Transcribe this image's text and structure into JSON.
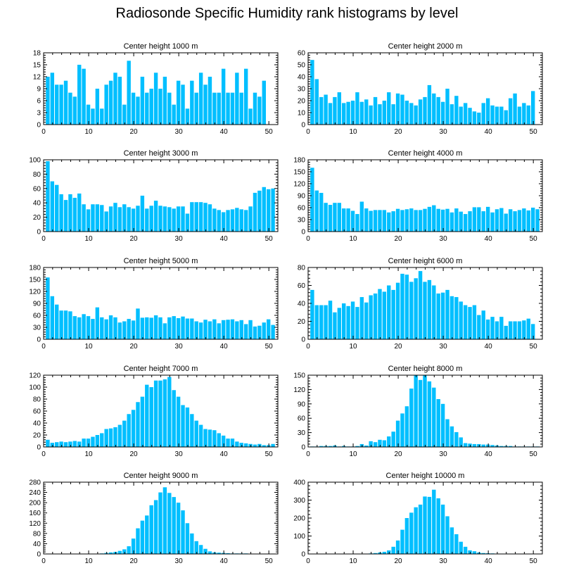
{
  "title": "Radiosonde Specific Humidity rank histograms by level",
  "colors": {
    "bar": "#00bfff",
    "bar_edge": "#ffffff",
    "axis": "#000000"
  },
  "chart_data": [
    {
      "type": "bar",
      "title": "Center height 1000 m",
      "xlim": [
        0,
        52
      ],
      "ylim": [
        0,
        18
      ],
      "xticks": [
        0,
        10,
        20,
        30,
        40,
        50
      ],
      "yticks": [
        0,
        3,
        6,
        9,
        12,
        15,
        18
      ],
      "values": [
        12,
        13,
        10,
        10,
        11,
        8,
        7,
        15,
        14,
        5,
        4,
        9,
        4,
        10,
        11,
        13,
        12,
        5,
        16,
        8,
        7,
        12,
        8,
        9,
        13,
        9,
        12,
        8,
        5,
        11,
        10,
        4,
        11,
        8,
        13,
        10,
        12,
        8,
        8,
        14,
        8,
        8,
        13,
        8,
        14,
        4,
        8,
        7,
        11
      ]
    },
    {
      "type": "bar",
      "title": "Center height 2000 m",
      "xlim": [
        0,
        52
      ],
      "ylim": [
        0,
        60
      ],
      "xticks": [
        0,
        10,
        20,
        30,
        40,
        50
      ],
      "yticks": [
        0,
        10,
        20,
        30,
        40,
        50,
        60
      ],
      "values": [
        54,
        38,
        23,
        25,
        18,
        23,
        27,
        18,
        19,
        20,
        27,
        19,
        21,
        16,
        23,
        17,
        20,
        27,
        17,
        26,
        25,
        20,
        18,
        16,
        21,
        23,
        33,
        26,
        23,
        19,
        30,
        17,
        24,
        15,
        18,
        14,
        11,
        10,
        18,
        22,
        16,
        15,
        15,
        12,
        22,
        26,
        15,
        18,
        16,
        28
      ]
    },
    {
      "type": "bar",
      "title": "Center height 3000 m",
      "xlim": [
        0,
        52
      ],
      "ylim": [
        0,
        100
      ],
      "xticks": [
        0,
        10,
        20,
        30,
        40,
        50
      ],
      "yticks": [
        0,
        20,
        40,
        60,
        80,
        100
      ],
      "values": [
        98,
        70,
        65,
        52,
        44,
        52,
        47,
        53,
        38,
        31,
        38,
        38,
        37,
        28,
        35,
        40,
        34,
        38,
        34,
        32,
        36,
        50,
        32,
        36,
        43,
        36,
        35,
        34,
        32,
        35,
        35,
        25,
        41,
        41,
        41,
        40,
        38,
        32,
        30,
        27,
        30,
        31,
        33,
        31,
        30,
        35,
        54,
        57,
        62,
        59,
        60
      ]
    },
    {
      "type": "bar",
      "title": "Center height 4000 m",
      "xlim": [
        0,
        52
      ],
      "ylim": [
        0,
        180
      ],
      "xticks": [
        0,
        10,
        20,
        30,
        40,
        50
      ],
      "yticks": [
        0,
        30,
        60,
        90,
        120,
        150,
        180
      ],
      "values": [
        160,
        103,
        97,
        72,
        67,
        72,
        72,
        58,
        58,
        52,
        44,
        75,
        58,
        52,
        54,
        54,
        54,
        48,
        51,
        57,
        54,
        56,
        58,
        54,
        54,
        57,
        62,
        66,
        57,
        55,
        57,
        48,
        58,
        50,
        44,
        51,
        61,
        61,
        51,
        62,
        48,
        56,
        59,
        45,
        56,
        51,
        54,
        58,
        53,
        60,
        56
      ]
    },
    {
      "type": "bar",
      "title": "Center height 5000 m",
      "xlim": [
        0,
        52
      ],
      "ylim": [
        0,
        180
      ],
      "xticks": [
        0,
        10,
        20,
        30,
        40,
        50
      ],
      "yticks": [
        0,
        30,
        60,
        90,
        120,
        150,
        180
      ],
      "values": [
        155,
        108,
        87,
        72,
        72,
        70,
        58,
        55,
        63,
        58,
        51,
        80,
        55,
        50,
        60,
        55,
        42,
        45,
        51,
        47,
        77,
        54,
        55,
        54,
        60,
        55,
        40,
        55,
        58,
        53,
        57,
        52,
        52,
        45,
        42,
        49,
        45,
        50,
        40,
        48,
        49,
        50,
        45,
        48,
        38,
        48,
        32,
        34,
        42,
        50,
        36
      ]
    },
    {
      "type": "bar",
      "title": "Center height 6000 m",
      "xlim": [
        0,
        52
      ],
      "ylim": [
        0,
        80
      ],
      "xticks": [
        0,
        10,
        20,
        30,
        40,
        50
      ],
      "yticks": [
        0,
        20,
        40,
        60,
        80
      ],
      "values": [
        55,
        38,
        38,
        38,
        43,
        30,
        35,
        40,
        37,
        42,
        36,
        47,
        41,
        49,
        51,
        56,
        53,
        60,
        55,
        63,
        73,
        72,
        64,
        68,
        76,
        64,
        66,
        60,
        51,
        52,
        55,
        48,
        47,
        42,
        38,
        36,
        38,
        27,
        32,
        22,
        25,
        20,
        25,
        15,
        20,
        20,
        20,
        21,
        23,
        17
      ]
    },
    {
      "type": "bar",
      "title": "Center height 7000 m",
      "xlim": [
        0,
        52
      ],
      "ylim": [
        0,
        120
      ],
      "xticks": [
        0,
        10,
        20,
        30,
        40,
        50
      ],
      "yticks": [
        0,
        20,
        40,
        60,
        80,
        100,
        120
      ],
      "values": [
        12,
        7,
        8,
        9,
        8,
        9,
        10,
        9,
        14,
        14,
        17,
        20,
        23,
        30,
        31,
        33,
        37,
        44,
        55,
        62,
        75,
        84,
        104,
        100,
        111,
        111,
        113,
        117,
        95,
        84,
        70,
        66,
        55,
        44,
        37,
        30,
        29,
        28,
        23,
        19,
        14,
        14,
        9,
        7,
        6,
        5,
        4,
        5,
        3,
        3,
        5
      ]
    },
    {
      "type": "bar",
      "title": "Center height 8000 m",
      "xlim": [
        0,
        52
      ],
      "ylim": [
        0,
        150
      ],
      "xticks": [
        0,
        10,
        20,
        30,
        40,
        50
      ],
      "yticks": [
        0,
        30,
        60,
        90,
        120,
        150
      ],
      "values": [
        1,
        1,
        2,
        2,
        2,
        3,
        1,
        2,
        1,
        1,
        2,
        6,
        3,
        12,
        10,
        15,
        14,
        22,
        32,
        55,
        70,
        85,
        122,
        150,
        140,
        150,
        137,
        124,
        100,
        90,
        58,
        43,
        31,
        20,
        8,
        7,
        6,
        6,
        5,
        5,
        4,
        3,
        2,
        2,
        2,
        1,
        1,
        1,
        1,
        1,
        1
      ]
    },
    {
      "type": "bar",
      "title": "Center height 9000 m",
      "xlim": [
        0,
        52
      ],
      "ylim": [
        0,
        280
      ],
      "xticks": [
        0,
        10,
        20,
        30,
        40,
        50
      ],
      "yticks": [
        0,
        40,
        80,
        120,
        160,
        200,
        240,
        280
      ],
      "values": [
        1,
        1,
        1,
        1,
        1,
        1,
        1,
        1,
        1,
        1,
        1,
        1,
        2,
        4,
        6,
        8,
        12,
        18,
        30,
        60,
        100,
        130,
        150,
        190,
        210,
        240,
        260,
        238,
        222,
        200,
        170,
        120,
        80,
        50,
        35,
        20,
        10,
        6,
        5,
        4,
        3,
        2,
        2,
        2,
        2,
        1,
        1,
        1,
        1,
        1,
        1
      ]
    },
    {
      "type": "bar",
      "title": "Center height 10000 m",
      "xlim": [
        0,
        52
      ],
      "ylim": [
        0,
        400
      ],
      "xticks": [
        0,
        10,
        20,
        30,
        40,
        50
      ],
      "yticks": [
        0,
        100,
        200,
        300,
        400
      ],
      "values": [
        1,
        1,
        1,
        1,
        1,
        1,
        1,
        1,
        1,
        1,
        1,
        1,
        2,
        3,
        5,
        8,
        12,
        20,
        40,
        75,
        135,
        200,
        230,
        260,
        275,
        320,
        318,
        358,
        310,
        275,
        210,
        148,
        110,
        68,
        40,
        20,
        15,
        8,
        5,
        4,
        3,
        2,
        2,
        2,
        2,
        1,
        1,
        1,
        1,
        1,
        1
      ]
    }
  ]
}
